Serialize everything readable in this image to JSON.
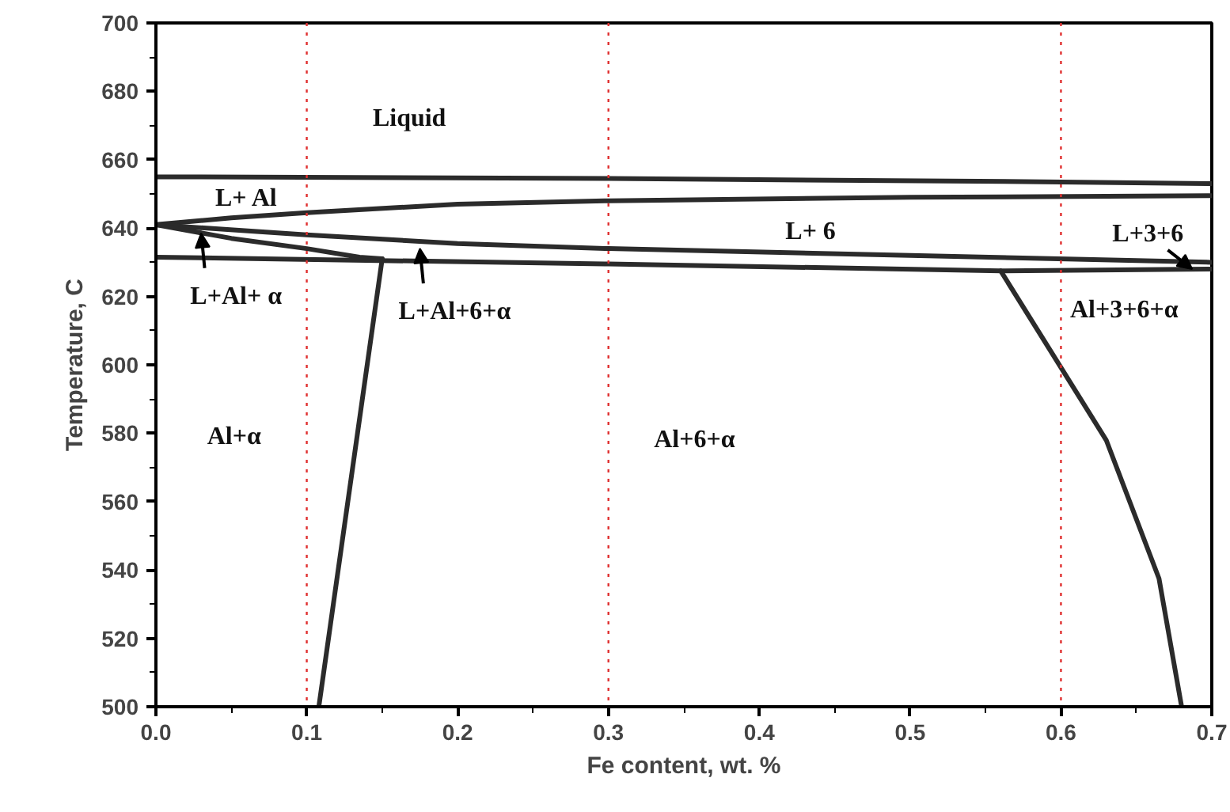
{
  "chart_data": {
    "type": "line",
    "xlabel": "Fe content, wt. %",
    "ylabel": "Temperature, C",
    "xlim": [
      0,
      0.7
    ],
    "ylim": [
      500,
      700
    ],
    "xticks": [
      {
        "value": 0,
        "label": "0.0"
      },
      0.1,
      0.2,
      0.3,
      0.4,
      0.5,
      0.6,
      0.7
    ],
    "yticks": [
      500,
      520,
      540,
      560,
      580,
      600,
      620,
      640,
      660,
      680,
      700
    ],
    "grid": false,
    "line_style": "solid",
    "marker": "none",
    "series": [
      {
        "color": "#2b2b2b",
        "x": [
          0,
          0.3,
          0.6,
          0.7
        ],
        "values": [
          655,
          654.5,
          653.5,
          653
        ]
      },
      {
        "color": "#2b2b2b",
        "x": [
          0,
          0.05,
          0.1,
          0.2,
          0.3,
          0.5,
          0.7
        ],
        "values": [
          641,
          643,
          644.5,
          647,
          648,
          649,
          649.5
        ]
      },
      {
        "color": "#2b2b2b",
        "x": [
          0,
          0.1,
          0.2,
          0.3,
          0.5,
          0.7
        ],
        "values": [
          641,
          638,
          635.5,
          634,
          632,
          630
        ]
      },
      {
        "color": "#2b2b2b",
        "x": [
          0,
          0.05,
          0.1,
          0.135,
          0.15
        ],
        "values": [
          641,
          637,
          634,
          631.5,
          631
        ]
      },
      {
        "color": "#2b2b2b",
        "x": [
          0,
          0.3,
          0.56,
          0.7
        ],
        "values": [
          631.5,
          629.5,
          627.5,
          628
        ]
      },
      {
        "color": "#2b2b2b",
        "x": [
          0.108,
          0.15
        ],
        "values": [
          500,
          631
        ]
      },
      {
        "color": "#2b2b2b",
        "x": [
          0.56,
          0.63,
          0.665,
          0.68
        ],
        "values": [
          627.5,
          578,
          537.5,
          500
        ]
      }
    ],
    "ref_lines": [
      {
        "axis": "x",
        "value": 0.1,
        "color": "#e03030",
        "line_style": "dotted"
      },
      {
        "axis": "x",
        "value": 0.3,
        "color": "#e03030",
        "line_style": "dotted"
      },
      {
        "axis": "x",
        "value": 0.6,
        "color": "#e03030",
        "line_style": "dotted"
      }
    ],
    "annotations": [
      "Liquid",
      "L+ Al",
      {
        "text": "L+Al+ α",
        "x": 0.03,
        "y": 638.5
      },
      {
        "text": "L+Al+6+α",
        "x": 0.175,
        "y": 634
      },
      "L+ 6",
      {
        "text": "L+3+6",
        "x": 0.687,
        "y": 628
      },
      "Al+3+6+α",
      "Al+α",
      "Al+6+α"
    ]
  }
}
